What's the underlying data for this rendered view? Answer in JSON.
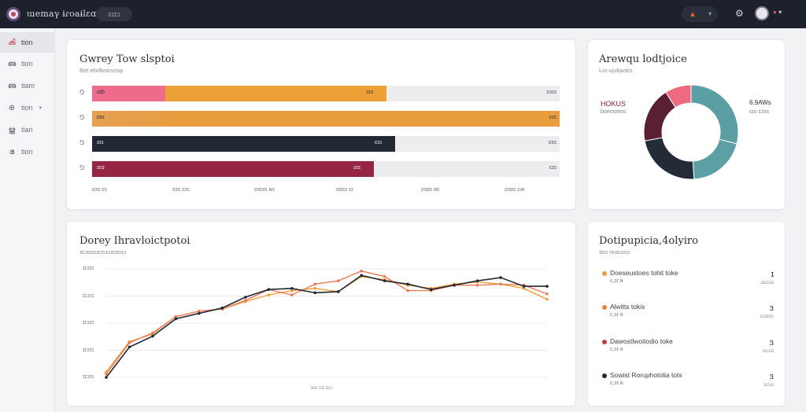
{
  "header": {
    "app_title": "ɯemaγ ɨɾoaɨlɛɑtw:",
    "pill": "ɛɪɪɔ",
    "notif_chevron": "▾",
    "avatar_chevron": "▾"
  },
  "sidebar": {
    "items": [
      {
        "label": "tion",
        "icon": "users-icon"
      },
      {
        "label": "tion",
        "icon": "document-icon"
      },
      {
        "label": "tiam",
        "icon": "folder-icon"
      },
      {
        "label": "tion",
        "icon": "settings-icon",
        "chevron": "▾"
      },
      {
        "label": "tian",
        "icon": "grid-icon"
      },
      {
        "label": "tion",
        "icon": "link-icon"
      }
    ]
  },
  "bar_card": {
    "title": "Gwrey Tow slsptoi",
    "subtitle": "Bet·ebrlbrarvosp",
    "axis_ticks": [
      "ƨɜs ɛs",
      "ƨɜs ɪɔs",
      "ƨɜɛɜs ɴs",
      "ƨɑsɜ ɪɜ",
      "ƨɜɑs ɴs",
      "ƨɜɑs ɪɔe"
    ],
    "rows": [
      {
        "label": "ƨɪb",
        "inner": "ɜɪs",
        "right": "ƨɜɪs",
        "fill": 0.63,
        "colors": [
          "#ee6b8c",
          "#eca035"
        ],
        "split": 0.157,
        "light": false
      },
      {
        "label": "ɛɪo",
        "inner": "",
        "right": "ɛɪs",
        "fill": 1.0,
        "colors": [
          "#e99c3b",
          "#e99c3b"
        ],
        "split": 0,
        "light": false
      },
      {
        "label": "ƨɪɪ",
        "inner": "ɛɪs",
        "right": "ƨɜs",
        "fill": 0.648,
        "colors": [
          "#222834",
          "#222834"
        ],
        "split": 0,
        "light": true
      },
      {
        "label": "ɪɛɑ",
        "inner": "ƨɪɛ",
        "right": "ɛɪs",
        "fill": 0.602,
        "colors": [
          "#962544",
          "#962544"
        ],
        "split": 0,
        "light": true
      }
    ]
  },
  "donut_card": {
    "title": "Arewqu lodtjoice",
    "subtitle": "Lio-ujubaoks",
    "legend_left_title": "HOKUS",
    "legend_left_sub": "boeosteos",
    "legend_right_title": "6.9AWs",
    "legend_right_sub": "ɛɪo ɛɔɜs",
    "slices": [
      {
        "name": "Segment 1",
        "value": 29,
        "color": "#5b9ea4"
      },
      {
        "name": "Segment 2",
        "value": 20,
        "color": "#5c9fa5"
      },
      {
        "name": "Segment 3",
        "value": 23,
        "color": "#232b37"
      },
      {
        "name": "Segment 4",
        "value": 19,
        "color": "#5a1f33"
      },
      {
        "name": "Segment 5",
        "value": 9,
        "color": "#ed6a80"
      }
    ]
  },
  "line_card": {
    "title": "Dorey Ihravloictpotoi",
    "subtitle": "ɪɛɔɑsɛɑɔsɪɜɪɛɑɜɪɔ",
    "y_ticks": [
      "ɪɪɔɪs",
      "ɪɪɔɪs",
      "ɪɪɔɪs",
      "ɪɪɔɪs",
      "ɪɪɔɪs"
    ],
    "legend": "ɪɛɑ ɪɔɪ ɪɛɔ"
  },
  "chart_data": {
    "type": "line",
    "title": "Dorey Ihravloictpotoi",
    "x": [
      1,
      2,
      3,
      4,
      5,
      6,
      7,
      8,
      9,
      10,
      11,
      12,
      13,
      14,
      15,
      16,
      17,
      18,
      19,
      20
    ],
    "series": [
      {
        "color": "#e97b5b",
        "values": [
          3,
          32,
          41,
          56,
          61,
          63,
          71,
          81,
          76,
          86,
          89,
          98,
          93,
          80,
          80,
          85,
          85,
          86,
          85,
          77
        ]
      },
      {
        "color": "#222834",
        "values": [
          0,
          28,
          38,
          54,
          59,
          64,
          74,
          81,
          82,
          78,
          79,
          94,
          89,
          86,
          81,
          85,
          89,
          92,
          84,
          84
        ]
      },
      {
        "color": "#eca035",
        "values": [
          5,
          33,
          40,
          56,
          61,
          63,
          70,
          76,
          80,
          82,
          79,
          93,
          90,
          85,
          82,
          86,
          88,
          86,
          82,
          72
        ]
      }
    ],
    "ylim": [
      0,
      100
    ],
    "grid": true
  },
  "timeline_card": {
    "title": "Dotipupicia,4olyiro",
    "subtitle": "ɪbo reacoss",
    "items": [
      {
        "title": "Doeseustoes tohit toke",
        "sub": "ɛ,ɜɪ ɴ",
        "num": "ɪ",
        "meta": "ɑɛɪɔɜɪ",
        "color": "#e99c3b"
      },
      {
        "title": "Alwitts tokis",
        "sub": "ɛ,ɜɪ ɴ",
        "num": "ɜ",
        "meta": "ɛɔɜɪɑɔ",
        "color": "#e9843b"
      },
      {
        "title": "Dawostlwoitodio toke",
        "sub": "ɛ,ɜɪ ɴ",
        "num": "ɜ",
        "meta": "ɑɛɔɜɪ",
        "color": "#c43c3f"
      },
      {
        "title": "Sowist Roruphotolia tots",
        "sub": "ɛ,ɜɪ ɴ",
        "num": "ɜ",
        "meta": "ɪɛɔɜɪ",
        "color": "#222834"
      }
    ]
  }
}
